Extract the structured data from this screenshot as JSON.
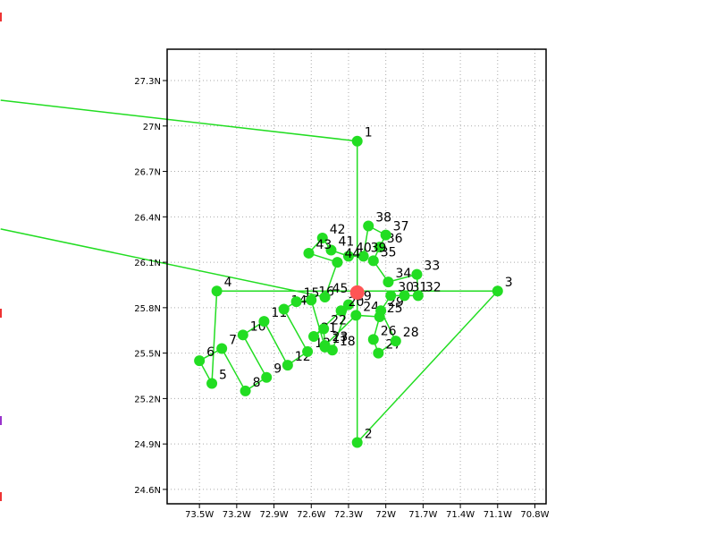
{
  "chart_data": {
    "type": "line",
    "xlim": [
      -73.76,
      -70.71
    ],
    "ylim": [
      24.505,
      27.507
    ],
    "xticks": [
      {
        "value": -73.5,
        "label": "73.5W"
      },
      {
        "value": -73.2,
        "label": "73.2W"
      },
      {
        "value": -72.9,
        "label": "72.9W"
      },
      {
        "value": -72.6,
        "label": "72.6W"
      },
      {
        "value": -72.3,
        "label": "72.3W"
      },
      {
        "value": -72.0,
        "label": "72W"
      },
      {
        "value": -71.7,
        "label": "71.7W"
      },
      {
        "value": -71.4,
        "label": "71.4W"
      },
      {
        "value": -71.1,
        "label": "71.1W"
      },
      {
        "value": -70.8,
        "label": "70.8W"
      }
    ],
    "yticks": [
      {
        "value": 24.6,
        "label": "24.6N"
      },
      {
        "value": 24.9,
        "label": "24.9N"
      },
      {
        "value": 25.2,
        "label": "25.2N"
      },
      {
        "value": 25.5,
        "label": "25.5N"
      },
      {
        "value": 25.8,
        "label": "25.8N"
      },
      {
        "value": 26.1,
        "label": "26.1N"
      },
      {
        "value": 26.4,
        "label": "26.4N"
      },
      {
        "value": 26.7,
        "label": "26.7N"
      },
      {
        "value": 27.0,
        "label": "27N"
      },
      {
        "value": 27.3,
        "label": "27.3N"
      }
    ],
    "grid": true,
    "x": [
      -75.1,
      -72.23,
      -72.23,
      -71.1,
      -73.36,
      -73.4,
      -73.5,
      -73.32,
      -73.13,
      -72.96,
      -73.15,
      -72.98,
      -72.79,
      -72.63,
      -72.82,
      -72.72,
      -72.6,
      -72.49,
      -72.43,
      -72.3,
      -72.36,
      -72.58,
      -72.5,
      -72.49,
      -72.24,
      -72.05,
      -72.1,
      -72.06,
      -71.92,
      -72.04,
      -71.96,
      -71.85,
      -71.74,
      -71.75,
      -71.98,
      -72.1,
      -72.05,
      -72.0,
      -72.14,
      -72.18,
      -72.3,
      -72.44,
      -72.51,
      -72.62,
      -72.39,
      -72.49,
      -75.1
    ],
    "series": [
      {
        "color": "#22dd22",
        "values": [
          27.17,
          26.9,
          24.91,
          25.91,
          25.91,
          25.3,
          25.45,
          25.53,
          25.25,
          25.34,
          25.62,
          25.71,
          25.42,
          25.51,
          25.79,
          25.84,
          25.85,
          25.54,
          25.52,
          25.82,
          25.78,
          25.61,
          25.66,
          25.55,
          25.75,
          25.74,
          25.59,
          25.5,
          25.58,
          25.78,
          25.88,
          25.88,
          25.88,
          26.02,
          25.97,
          26.11,
          26.2,
          26.28,
          26.34,
          26.14,
          26.14,
          26.18,
          26.26,
          26.16,
          26.1,
          25.87,
          26.32
        ],
        "labels": [
          null,
          "1",
          "2",
          "3",
          "4",
          "5",
          "6",
          "7",
          "8",
          "9",
          "10",
          "11",
          "12",
          "13",
          "14",
          "15",
          "16",
          "17",
          "18",
          "19",
          "20",
          "21",
          "22",
          "23",
          "24",
          "25",
          "26",
          "27",
          "28",
          "29",
          "30",
          "31",
          "32",
          "33",
          "34",
          "35",
          "36",
          "37",
          "38",
          "39",
          "40",
          "41",
          "42",
          "43",
          "44",
          "45",
          null
        ]
      }
    ],
    "marker": {
      "x": -72.23,
      "y": 25.9,
      "color": "#ff5555"
    }
  }
}
